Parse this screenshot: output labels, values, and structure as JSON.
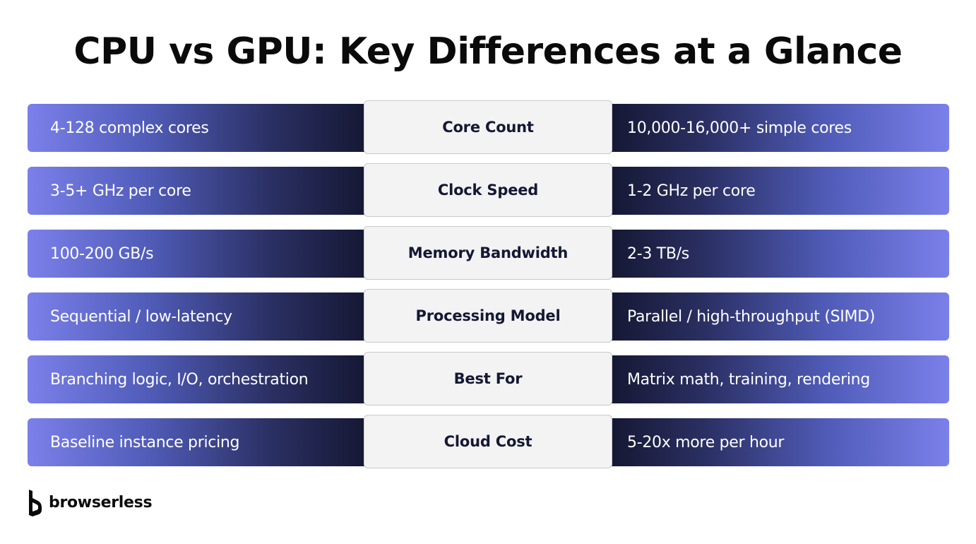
{
  "title": "CPU vs GPU: Key Differences at a Glance",
  "colors": {
    "bar_light": "#7b80ea",
    "bar_dark": "#13162f",
    "center_bg": "#f3f3f4",
    "center_border": "#c9c9cc",
    "label_text": "#141833"
  },
  "rows": [
    {
      "left": "4-128 complex cores",
      "label": "Core Count",
      "right": "10,000-16,000+ simple cores"
    },
    {
      "left": "3-5+ GHz per core",
      "label": "Clock Speed",
      "right": "1-2 GHz per core"
    },
    {
      "left": "100-200 GB/s",
      "label": "Memory Bandwidth",
      "right": "2-3 TB/s"
    },
    {
      "left": "Sequential / low-latency",
      "label": "Processing Model",
      "right": "Parallel / high-throughput (SIMD)"
    },
    {
      "left": "Branching logic, I/O, orchestration",
      "label": "Best For",
      "right": "Matrix math, training, rendering"
    },
    {
      "left": "Baseline instance pricing",
      "label": "Cloud Cost",
      "right": "5-20x more per hour"
    }
  ],
  "logo": {
    "icon": "browserless-logo-icon",
    "text": "browserless"
  }
}
